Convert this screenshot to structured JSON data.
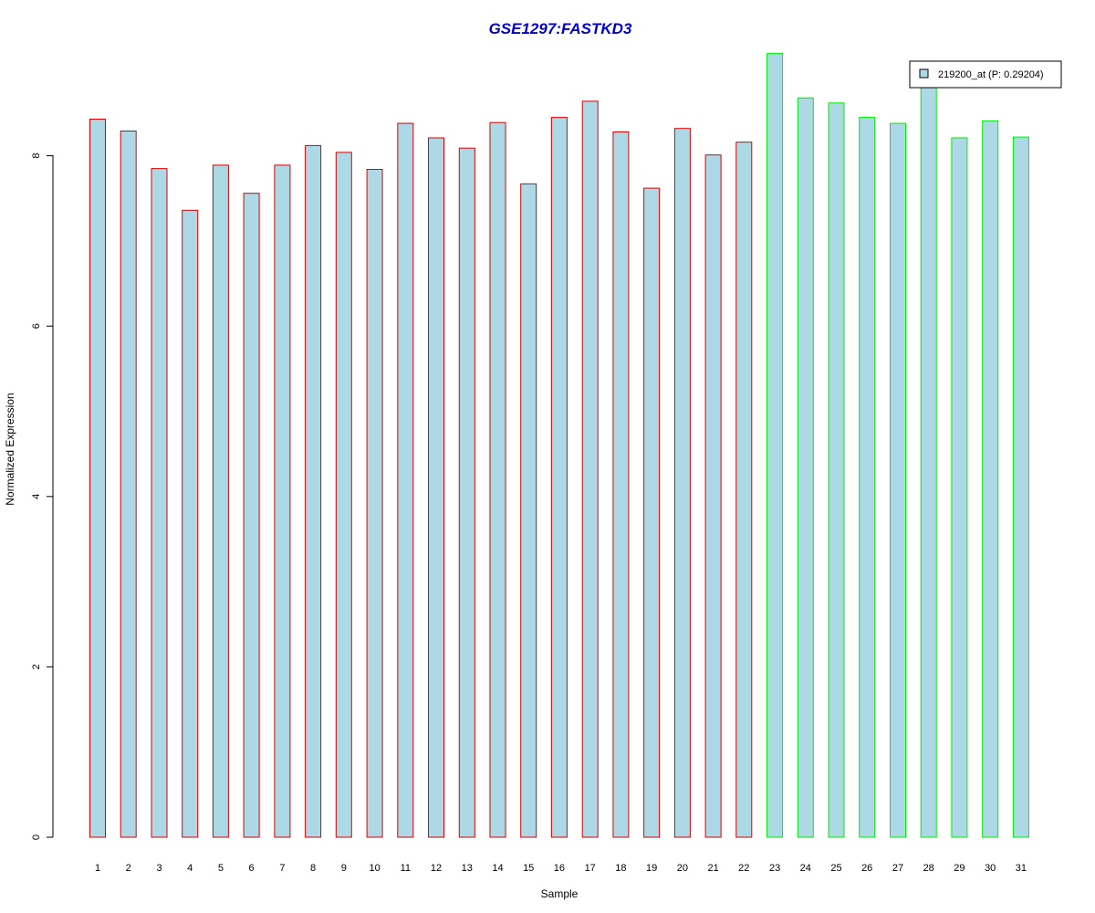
{
  "chart_data": {
    "type": "bar",
    "title": "GSE1297:FASTKD3",
    "xlabel": "Sample",
    "ylabel": "Normalized Expression",
    "ylim": [
      0,
      9.2
    ],
    "yticks": [
      0,
      2,
      4,
      6,
      8
    ],
    "grid": false,
    "legend_position": "top-right",
    "legend": {
      "label": "219200_at (P: 0.29204)",
      "fill": "#add8e6"
    },
    "bar_fill": "#add8e6",
    "group_colors": {
      "group1": "#dd0000",
      "group2": "#00ee00"
    },
    "categories": [
      "1",
      "2",
      "3",
      "4",
      "5",
      "6",
      "7",
      "8",
      "9",
      "10",
      "11",
      "12",
      "13",
      "14",
      "15",
      "16",
      "17",
      "18",
      "19",
      "20",
      "21",
      "22",
      "23",
      "24",
      "25",
      "26",
      "27",
      "28",
      "29",
      "30",
      "31"
    ],
    "values": [
      8.43,
      8.29,
      7.85,
      7.36,
      7.89,
      7.56,
      7.89,
      8.12,
      8.04,
      7.84,
      8.38,
      8.21,
      8.09,
      8.39,
      7.67,
      8.45,
      8.64,
      8.28,
      7.62,
      8.32,
      8.01,
      8.16,
      9.2,
      8.68,
      8.62,
      8.45,
      8.38,
      8.82,
      8.21,
      8.41,
      8.22
    ],
    "groups": [
      1,
      1,
      1,
      1,
      1,
      1,
      1,
      1,
      1,
      1,
      1,
      1,
      1,
      1,
      1,
      1,
      1,
      1,
      1,
      1,
      1,
      1,
      2,
      2,
      2,
      2,
      2,
      2,
      2,
      2,
      2
    ]
  }
}
